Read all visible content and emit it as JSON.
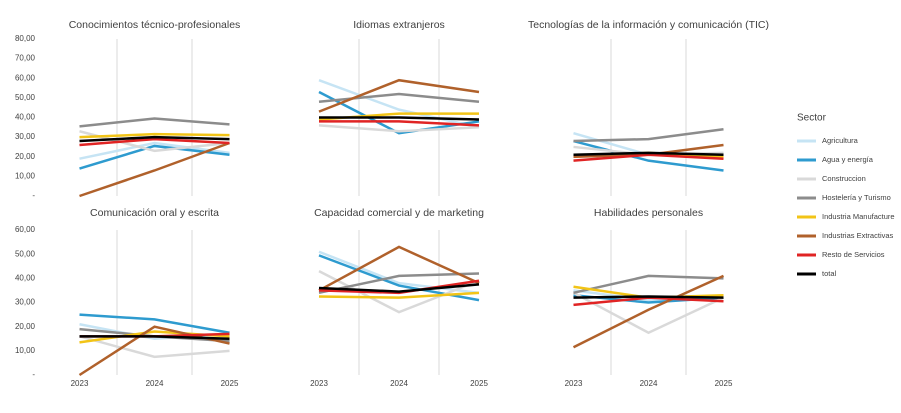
{
  "legend": {
    "title": "Sector",
    "series": [
      {
        "name": "Agricultura",
        "color": "#c6e4f4"
      },
      {
        "name": "Agua y energía",
        "color": "#2e9bcf"
      },
      {
        "name": "Construccion",
        "color": "#d9d9d9"
      },
      {
        "name": "Hostelería y Turismo",
        "color": "#8c8c8c"
      },
      {
        "name": "Industria Manufacture",
        "color": "#f2c417"
      },
      {
        "name": "Industrias Extractivas",
        "color": "#b0612b"
      },
      {
        "name": "Resto de Servicios",
        "color": "#e02424"
      },
      {
        "name": "total",
        "color": "#000000"
      }
    ]
  },
  "chart_data": [
    {
      "type": "line",
      "title": "Conocimientos técnico-profesionales",
      "ylim": [
        0,
        80
      ],
      "yticks": [
        {
          "value": 0,
          "label": "-"
        },
        {
          "value": 10,
          "label": "10,00"
        },
        {
          "value": 20,
          "label": "20,00"
        },
        {
          "value": 30,
          "label": "30,00"
        },
        {
          "value": 40,
          "label": "40,00"
        },
        {
          "value": 50,
          "label": "50,00"
        },
        {
          "value": 60,
          "label": "60,00"
        },
        {
          "value": 70,
          "label": "70,00"
        },
        {
          "value": 80,
          "label": "80,00"
        }
      ],
      "series": [
        {
          "values": [
            19,
            27,
            22
          ]
        },
        {
          "values": [
            14,
            25.5,
            21
          ]
        },
        {
          "values": [
            33,
            23,
            27
          ]
        },
        {
          "values": [
            35.5,
            39.5,
            36.5
          ]
        },
        {
          "values": [
            30,
            31.5,
            31
          ]
        },
        {
          "values": [
            0,
            13,
            27
          ]
        },
        {
          "values": [
            26,
            29,
            27
          ]
        },
        {
          "values": [
            28,
            30,
            29
          ]
        }
      ]
    },
    {
      "type": "line",
      "title": "Idiomas extranjeros",
      "ylim": [
        0,
        80
      ],
      "series": [
        {
          "values": [
            59,
            44,
            35
          ]
        },
        {
          "values": [
            53,
            32,
            38
          ]
        },
        {
          "values": [
            36,
            33,
            35
          ]
        },
        {
          "values": [
            48,
            52,
            48
          ]
        },
        {
          "values": [
            39,
            42,
            42
          ]
        },
        {
          "values": [
            43,
            59,
            53
          ]
        },
        {
          "values": [
            38,
            38,
            36
          ]
        },
        {
          "values": [
            40,
            40,
            39
          ]
        }
      ]
    },
    {
      "type": "line",
      "title": "Tecnologías de la información y comunicación (TIC)",
      "ylim": [
        0,
        80
      ],
      "series": [
        {
          "values": [
            32,
            21,
            20
          ]
        },
        {
          "values": [
            28,
            18,
            13
          ]
        },
        {
          "values": [
            25,
            21,
            22
          ]
        },
        {
          "values": [
            28,
            29,
            34
          ]
        },
        {
          "values": [
            20,
            22,
            20
          ]
        },
        {
          "values": [
            20,
            21,
            26
          ]
        },
        {
          "values": [
            18,
            21,
            19
          ]
        },
        {
          "values": [
            21,
            22,
            21
          ]
        }
      ]
    },
    {
      "type": "line",
      "title": "Comunicación oral y escrita",
      "ylim": [
        0,
        60
      ],
      "yticks": [
        {
          "value": 0,
          "label": "-"
        },
        {
          "value": 10,
          "label": "10,00"
        },
        {
          "value": 20,
          "label": "20,00"
        },
        {
          "value": 30,
          "label": "30,00"
        },
        {
          "value": 40,
          "label": "40,00"
        },
        {
          "value": 50,
          "label": "50,00"
        },
        {
          "value": 60,
          "label": "60,00"
        }
      ],
      "categories": [
        "2023",
        "2024",
        "2025"
      ],
      "series": [
        {
          "values": [
            21,
            15,
            17
          ]
        },
        {
          "values": [
            25,
            23,
            17.5
          ]
        },
        {
          "values": [
            16,
            7.5,
            10
          ]
        },
        {
          "values": [
            19,
            16,
            14
          ]
        },
        {
          "values": [
            13.5,
            18,
            16
          ]
        },
        {
          "values": [
            0,
            20,
            13
          ]
        },
        {
          "values": [
            16,
            16,
            17
          ]
        },
        {
          "values": [
            16,
            16,
            15
          ]
        }
      ]
    },
    {
      "type": "line",
      "title": "Capacidad comercial y de marketing",
      "ylim": [
        0,
        60
      ],
      "categories": [
        "2023",
        "2024",
        "2025"
      ],
      "series": [
        {
          "values": [
            51,
            38,
            34
          ]
        },
        {
          "values": [
            49.5,
            37,
            31
          ]
        },
        {
          "values": [
            43,
            26,
            39
          ]
        },
        {
          "values": [
            34,
            41,
            42
          ]
        },
        {
          "values": [
            32.5,
            32,
            34
          ]
        },
        {
          "values": [
            35,
            53,
            38
          ]
        },
        {
          "values": [
            35,
            34,
            39
          ]
        },
        {
          "values": [
            36,
            34.5,
            37.5
          ]
        }
      ]
    },
    {
      "type": "line",
      "title": "Habilidades personales",
      "ylim": [
        0,
        60
      ],
      "categories": [
        "2023",
        "2024",
        "2025"
      ],
      "series": [
        {
          "values": [
            35,
            31,
            32
          ]
        },
        {
          "values": [
            33,
            30,
            32
          ]
        },
        {
          "values": [
            34,
            17.5,
            32
          ]
        },
        {
          "values": [
            34,
            41,
            40
          ]
        },
        {
          "values": [
            36.5,
            32,
            33
          ]
        },
        {
          "values": [
            11.5,
            27,
            41
          ]
        },
        {
          "values": [
            29,
            32,
            30.5
          ]
        },
        {
          "values": [
            32,
            32.5,
            32
          ]
        }
      ]
    }
  ]
}
